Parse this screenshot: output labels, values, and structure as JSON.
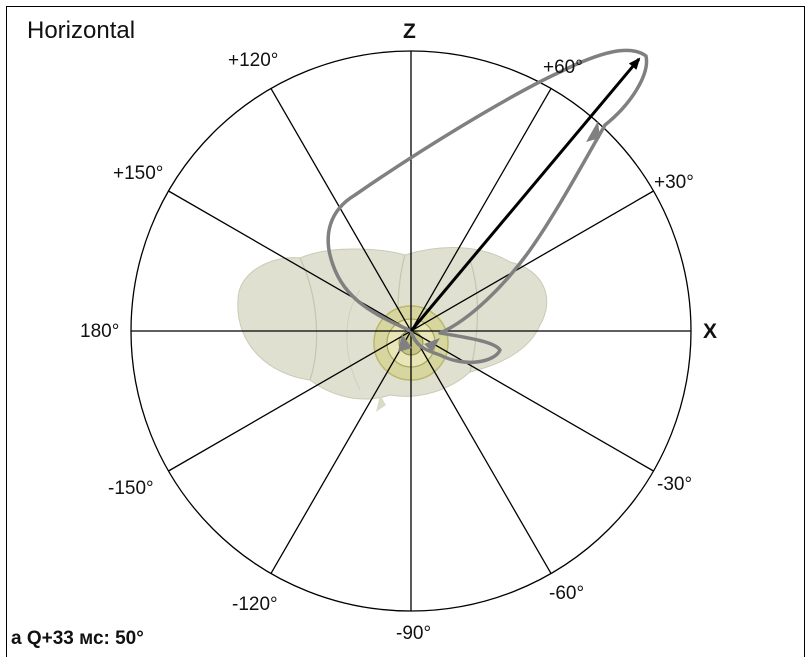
{
  "title": "Horizontal",
  "caption": "a Q+33 мс: 50°",
  "axes": {
    "z": "Z",
    "x": "X"
  },
  "angle_labels": [
    "+120°",
    "+60°",
    "+150°",
    "+30°",
    "180°",
    "-150°",
    "-30°",
    "-120°",
    "-60°",
    "-90°"
  ],
  "colors": {
    "circle": "#000000",
    "loop": "#808080",
    "vector": "#000000",
    "heart_outer": "#d9dbc7",
    "heart_core": "#c6c585"
  },
  "vector_angle_deg": 50
}
